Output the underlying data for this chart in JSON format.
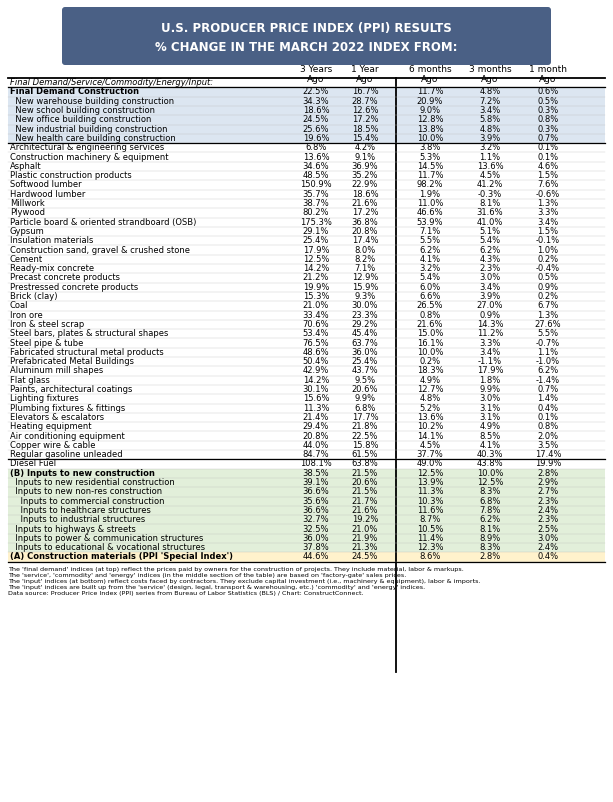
{
  "title_line1": "U.S. PRODUCER PRICE INDEX (PPI) RESULTS",
  "title_line2": "% CHANGE IN THE MARCH 2022 INDEX FROM:",
  "title_bg": "#4a6085",
  "title_color": "#ffffff",
  "rows": [
    {
      "label": "Final Demand/Service/Commodity/Energy/Input:",
      "vals": [
        "",
        "",
        "",
        "",
        ""
      ],
      "indent": 0,
      "bold": false,
      "italic": true,
      "shade": "none"
    },
    {
      "label": "Final Demand Construction",
      "vals": [
        "22.5%",
        "16.7%",
        "11.7%",
        "4.8%",
        "0.6%"
      ],
      "indent": 0,
      "bold": true,
      "italic": false,
      "shade": "blue"
    },
    {
      "label": "  New warehouse building construction",
      "vals": [
        "34.3%",
        "28.7%",
        "20.9%",
        "7.2%",
        "0.5%"
      ],
      "indent": 1,
      "bold": false,
      "italic": false,
      "shade": "blue"
    },
    {
      "label": "  New school building construction",
      "vals": [
        "18.6%",
        "12.6%",
        "9.0%",
        "3.4%",
        "0.3%"
      ],
      "indent": 1,
      "bold": false,
      "italic": false,
      "shade": "blue"
    },
    {
      "label": "  New office building construction",
      "vals": [
        "24.5%",
        "17.2%",
        "12.8%",
        "5.8%",
        "0.8%"
      ],
      "indent": 1,
      "bold": false,
      "italic": false,
      "shade": "blue"
    },
    {
      "label": "  New industrial building construction",
      "vals": [
        "25.6%",
        "18.5%",
        "13.8%",
        "4.8%",
        "0.3%"
      ],
      "indent": 1,
      "bold": false,
      "italic": false,
      "shade": "blue"
    },
    {
      "label": "  New health care building construction",
      "vals": [
        "19.6%",
        "15.4%",
        "10.0%",
        "3.9%",
        "0.7%"
      ],
      "indent": 1,
      "bold": false,
      "italic": false,
      "shade": "blue"
    },
    {
      "label": "Architectural & engineering services",
      "vals": [
        "6.8%",
        "4.2%",
        "3.8%",
        "3.2%",
        "0.1%"
      ],
      "indent": 0,
      "bold": false,
      "italic": false,
      "shade": "none"
    },
    {
      "label": "Construction machinery & equipment",
      "vals": [
        "13.6%",
        "9.1%",
        "5.3%",
        "1.1%",
        "0.1%"
      ],
      "indent": 0,
      "bold": false,
      "italic": false,
      "shade": "none"
    },
    {
      "label": "Asphalt",
      "vals": [
        "34.6%",
        "36.9%",
        "14.5%",
        "13.6%",
        "4.6%"
      ],
      "indent": 0,
      "bold": false,
      "italic": false,
      "shade": "none"
    },
    {
      "label": "Plastic construction products",
      "vals": [
        "48.5%",
        "35.2%",
        "11.7%",
        "4.5%",
        "1.5%"
      ],
      "indent": 0,
      "bold": false,
      "italic": false,
      "shade": "none"
    },
    {
      "label": "Softwood lumber",
      "vals": [
        "150.9%",
        "22.9%",
        "98.2%",
        "41.2%",
        "7.6%"
      ],
      "indent": 0,
      "bold": false,
      "italic": false,
      "shade": "none"
    },
    {
      "label": "Hardwood lumber",
      "vals": [
        "35.7%",
        "18.6%",
        "1.9%",
        "-0.3%",
        "-0.6%"
      ],
      "indent": 0,
      "bold": false,
      "italic": false,
      "shade": "none"
    },
    {
      "label": "Millwork",
      "vals": [
        "38.7%",
        "21.6%",
        "11.0%",
        "8.1%",
        "1.3%"
      ],
      "indent": 0,
      "bold": false,
      "italic": false,
      "shade": "none"
    },
    {
      "label": "Plywood",
      "vals": [
        "80.2%",
        "17.2%",
        "46.6%",
        "31.6%",
        "3.3%"
      ],
      "indent": 0,
      "bold": false,
      "italic": false,
      "shade": "none"
    },
    {
      "label": "Particle board & oriented strandboard (OSB)",
      "vals": [
        "175.3%",
        "36.8%",
        "53.9%",
        "41.0%",
        "3.4%"
      ],
      "indent": 0,
      "bold": false,
      "italic": false,
      "shade": "none"
    },
    {
      "label": "Gypsum",
      "vals": [
        "29.1%",
        "20.8%",
        "7.1%",
        "5.1%",
        "1.5%"
      ],
      "indent": 0,
      "bold": false,
      "italic": false,
      "shade": "none"
    },
    {
      "label": "Insulation materials",
      "vals": [
        "25.4%",
        "17.4%",
        "5.5%",
        "5.4%",
        "-0.1%"
      ],
      "indent": 0,
      "bold": false,
      "italic": false,
      "shade": "none"
    },
    {
      "label": "Construction sand, gravel & crushed stone",
      "vals": [
        "17.9%",
        "8.0%",
        "6.2%",
        "6.2%",
        "1.0%"
      ],
      "indent": 0,
      "bold": false,
      "italic": false,
      "shade": "none"
    },
    {
      "label": "Cement",
      "vals": [
        "12.5%",
        "8.2%",
        "4.1%",
        "4.3%",
        "0.2%"
      ],
      "indent": 0,
      "bold": false,
      "italic": false,
      "shade": "none"
    },
    {
      "label": "Ready-mix concrete",
      "vals": [
        "14.2%",
        "7.1%",
        "3.2%",
        "2.3%",
        "-0.4%"
      ],
      "indent": 0,
      "bold": false,
      "italic": false,
      "shade": "none"
    },
    {
      "label": "Precast concrete products",
      "vals": [
        "21.2%",
        "12.9%",
        "5.4%",
        "3.0%",
        "0.5%"
      ],
      "indent": 0,
      "bold": false,
      "italic": false,
      "shade": "none"
    },
    {
      "label": "Prestressed concrete products",
      "vals": [
        "19.9%",
        "15.9%",
        "6.0%",
        "3.4%",
        "0.9%"
      ],
      "indent": 0,
      "bold": false,
      "italic": false,
      "shade": "none"
    },
    {
      "label": "Brick (clay)",
      "vals": [
        "15.3%",
        "9.3%",
        "6.6%",
        "3.9%",
        "0.2%"
      ],
      "indent": 0,
      "bold": false,
      "italic": false,
      "shade": "none"
    },
    {
      "label": "Coal",
      "vals": [
        "21.0%",
        "30.0%",
        "26.5%",
        "27.0%",
        "6.7%"
      ],
      "indent": 0,
      "bold": false,
      "italic": false,
      "shade": "none"
    },
    {
      "label": "Iron ore",
      "vals": [
        "33.4%",
        "23.3%",
        "0.8%",
        "0.9%",
        "1.3%"
      ],
      "indent": 0,
      "bold": false,
      "italic": false,
      "shade": "none"
    },
    {
      "label": "Iron & steel scrap",
      "vals": [
        "70.6%",
        "29.2%",
        "21.6%",
        "14.3%",
        "27.6%"
      ],
      "indent": 0,
      "bold": false,
      "italic": false,
      "shade": "none"
    },
    {
      "label": "Steel bars, plates & structural shapes",
      "vals": [
        "53.4%",
        "45.4%",
        "15.0%",
        "11.2%",
        "5.5%"
      ],
      "indent": 0,
      "bold": false,
      "italic": false,
      "shade": "none"
    },
    {
      "label": "Steel pipe & tube",
      "vals": [
        "76.5%",
        "63.7%",
        "16.1%",
        "3.3%",
        "-0.7%"
      ],
      "indent": 0,
      "bold": false,
      "italic": false,
      "shade": "none"
    },
    {
      "label": "Fabricated structural metal products",
      "vals": [
        "48.6%",
        "36.0%",
        "10.0%",
        "3.4%",
        "1.1%"
      ],
      "indent": 0,
      "bold": false,
      "italic": false,
      "shade": "none"
    },
    {
      "label": "Prefabricated Metal Buildings",
      "vals": [
        "50.4%",
        "25.4%",
        "0.2%",
        "-1.1%",
        "-1.0%"
      ],
      "indent": 0,
      "bold": false,
      "italic": false,
      "shade": "none"
    },
    {
      "label": "Aluminum mill shapes",
      "vals": [
        "42.9%",
        "43.7%",
        "18.3%",
        "17.9%",
        "6.2%"
      ],
      "indent": 0,
      "bold": false,
      "italic": false,
      "shade": "none"
    },
    {
      "label": "Flat glass",
      "vals": [
        "14.2%",
        "9.5%",
        "4.9%",
        "1.8%",
        "-1.4%"
      ],
      "indent": 0,
      "bold": false,
      "italic": false,
      "shade": "none"
    },
    {
      "label": "Paints, architectural coatings",
      "vals": [
        "30.1%",
        "20.6%",
        "12.7%",
        "9.9%",
        "0.7%"
      ],
      "indent": 0,
      "bold": false,
      "italic": false,
      "shade": "none"
    },
    {
      "label": "Lighting fixtures",
      "vals": [
        "15.6%",
        "9.9%",
        "4.8%",
        "3.0%",
        "1.4%"
      ],
      "indent": 0,
      "bold": false,
      "italic": false,
      "shade": "none"
    },
    {
      "label": "Plumbing fixtures & fittings",
      "vals": [
        "11.3%",
        "6.8%",
        "5.2%",
        "3.1%",
        "0.4%"
      ],
      "indent": 0,
      "bold": false,
      "italic": false,
      "shade": "none"
    },
    {
      "label": "Elevators & escalators",
      "vals": [
        "21.4%",
        "17.7%",
        "13.6%",
        "3.1%",
        "0.1%"
      ],
      "indent": 0,
      "bold": false,
      "italic": false,
      "shade": "none"
    },
    {
      "label": "Heating equipment",
      "vals": [
        "29.4%",
        "21.8%",
        "10.2%",
        "4.9%",
        "0.8%"
      ],
      "indent": 0,
      "bold": false,
      "italic": false,
      "shade": "none"
    },
    {
      "label": "Air conditioning equipment",
      "vals": [
        "20.8%",
        "22.5%",
        "14.1%",
        "8.5%",
        "2.0%"
      ],
      "indent": 0,
      "bold": false,
      "italic": false,
      "shade": "none"
    },
    {
      "label": "Copper wire & cable",
      "vals": [
        "44.0%",
        "15.8%",
        "4.5%",
        "4.1%",
        "3.5%"
      ],
      "indent": 0,
      "bold": false,
      "italic": false,
      "shade": "none"
    },
    {
      "label": "Regular gasoline unleaded",
      "vals": [
        "84.7%",
        "61.5%",
        "37.7%",
        "40.3%",
        "17.4%"
      ],
      "indent": 0,
      "bold": false,
      "italic": false,
      "shade": "none"
    },
    {
      "label": "Diesel Fuel",
      "vals": [
        "108.1%",
        "63.8%",
        "49.0%",
        "43.8%",
        "19.9%"
      ],
      "indent": 0,
      "bold": false,
      "italic": false,
      "shade": "none"
    },
    {
      "label": "(B) Inputs to new construction",
      "vals": [
        "38.5%",
        "21.5%",
        "12.5%",
        "10.0%",
        "2.8%"
      ],
      "indent": 0,
      "bold": true,
      "italic": false,
      "shade": "green"
    },
    {
      "label": "  Inputs to new residential construction",
      "vals": [
        "39.1%",
        "20.6%",
        "13.9%",
        "12.5%",
        "2.9%"
      ],
      "indent": 1,
      "bold": false,
      "italic": false,
      "shade": "green"
    },
    {
      "label": "  Inputs to new non-res construction",
      "vals": [
        "36.6%",
        "21.5%",
        "11.3%",
        "8.3%",
        "2.7%"
      ],
      "indent": 1,
      "bold": false,
      "italic": false,
      "shade": "green"
    },
    {
      "label": "    Inputs to commercial construction",
      "vals": [
        "35.6%",
        "21.7%",
        "10.3%",
        "6.8%",
        "2.3%"
      ],
      "indent": 2,
      "bold": false,
      "italic": false,
      "shade": "green"
    },
    {
      "label": "    Inputs to healthcare structures",
      "vals": [
        "36.6%",
        "21.6%",
        "11.6%",
        "7.8%",
        "2.4%"
      ],
      "indent": 2,
      "bold": false,
      "italic": false,
      "shade": "green"
    },
    {
      "label": "    Inputs to industrial structures",
      "vals": [
        "32.7%",
        "19.2%",
        "8.7%",
        "6.2%",
        "2.3%"
      ],
      "indent": 2,
      "bold": false,
      "italic": false,
      "shade": "green"
    },
    {
      "label": "  Inputs to highways & streets",
      "vals": [
        "32.5%",
        "21.0%",
        "10.5%",
        "8.1%",
        "2.5%"
      ],
      "indent": 1,
      "bold": false,
      "italic": false,
      "shade": "green"
    },
    {
      "label": "  Inputs to power & communication structures",
      "vals": [
        "36.0%",
        "21.9%",
        "11.4%",
        "8.9%",
        "3.0%"
      ],
      "indent": 1,
      "bold": false,
      "italic": false,
      "shade": "green"
    },
    {
      "label": "  Inputs to educational & vocational structures",
      "vals": [
        "37.8%",
        "21.3%",
        "12.3%",
        "8.3%",
        "2.4%"
      ],
      "indent": 1,
      "bold": false,
      "italic": false,
      "shade": "green"
    },
    {
      "label": "(A) Construction materials (PPI 'Special Index')",
      "vals": [
        "44.6%",
        "24.5%",
        "8.6%",
        "2.8%",
        "0.4%"
      ],
      "indent": 0,
      "bold": true,
      "italic": false,
      "shade": "yellow"
    }
  ],
  "footnotes": [
    "The 'final demand' indices (at top) reflect the prices paid by owners for the construction of projects. They include material, labor & markups.",
    "The 'service', 'commodity' and 'energy' indices (in the middle section of the table) are based on 'factory-gate' sales prices.",
    "The 'input' indices (at bottom) reflect costs faced by contractors. They exclude capital investment (i.e., machinery & equipment), labor & imports.",
    "The 'input' indices are built up from the 'service' (design, legal, transport & warehousing, etc.) 'commodity' and 'energy' indices.",
    "Data source: Producer Price Index (PPI) series from Bureau of Labor Statistics (BLS) / Chart: ConstructConnect."
  ],
  "shade_blue": "#dce6f1",
  "shade_green": "#e2efda",
  "shade_yellow": "#fff2cc"
}
